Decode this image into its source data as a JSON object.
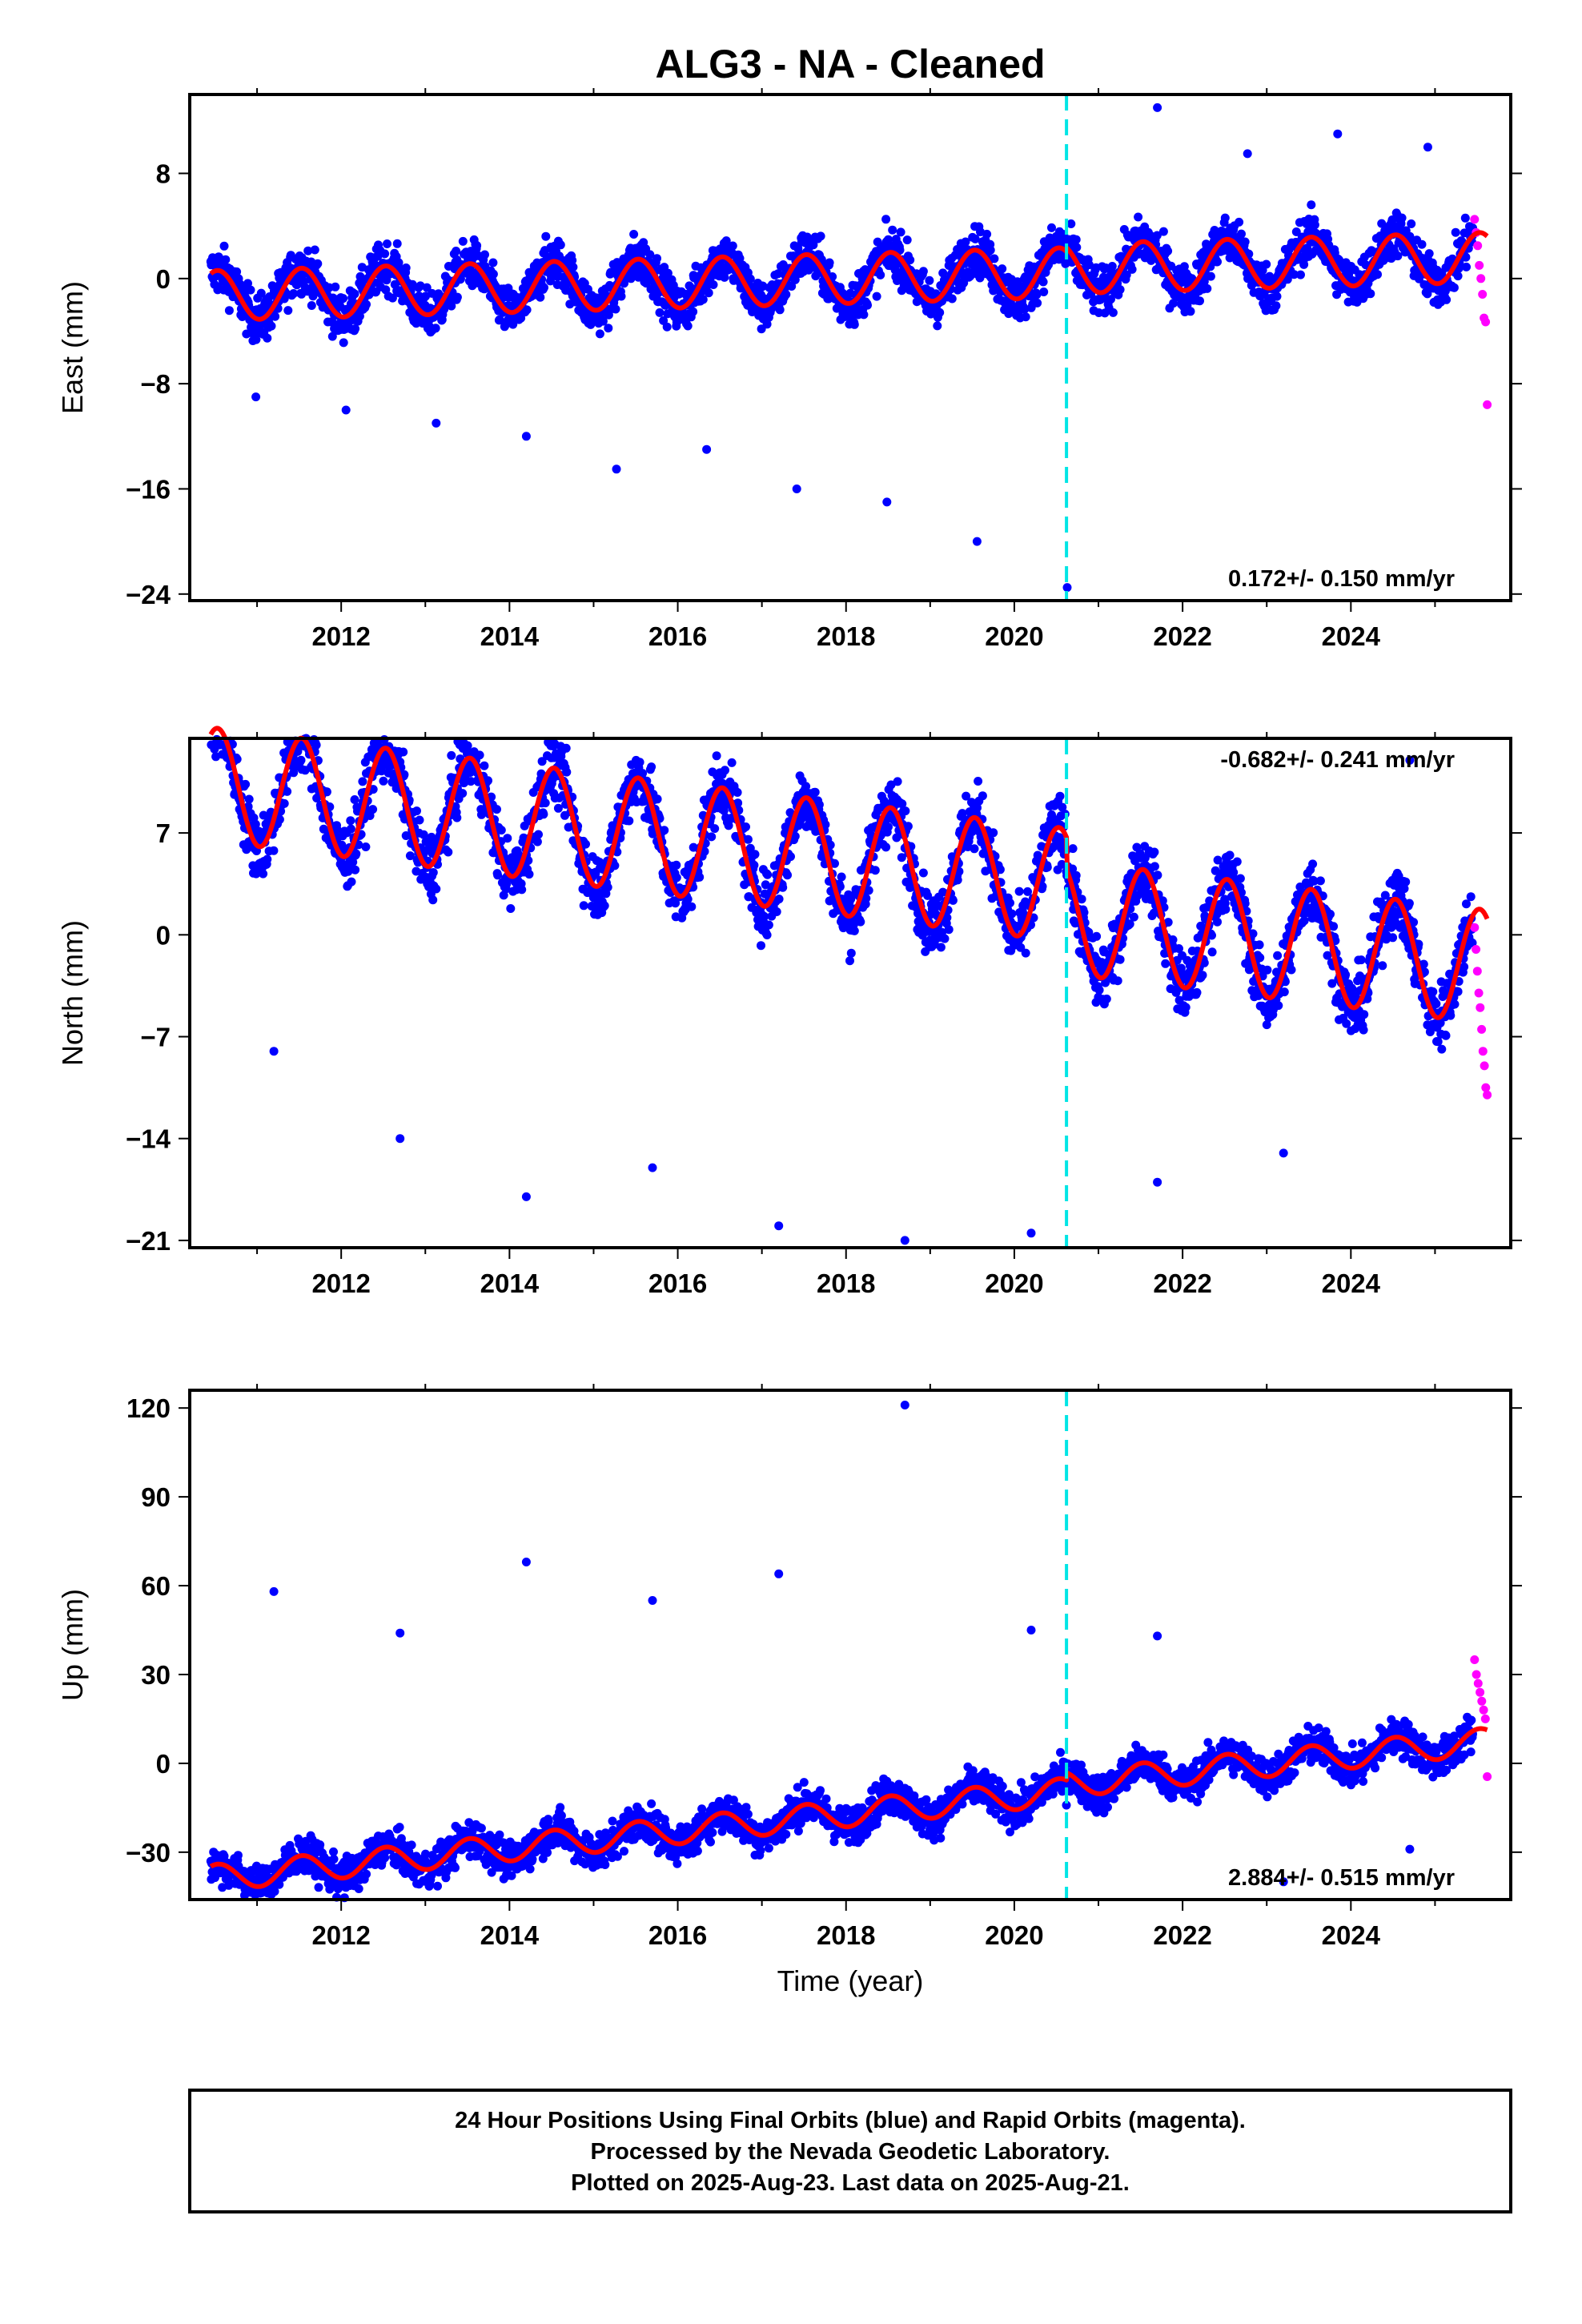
{
  "title": "ALG3  - NA - Cleaned",
  "footer": {
    "line1": "24 Hour Positions Using Final Orbits (blue) and Rapid Orbits (magenta).",
    "line2": "Processed by the Nevada Geodetic Laboratory.",
    "line3": "Plotted on 2025-Aug-23. Last data on 2025-Aug-21."
  },
  "colors": {
    "final_orbits": "#0000ff",
    "rapid_orbits": "#ff00ff",
    "model_fit": "#ff0000",
    "equipment_change": "#00e5e5",
    "frame": "#000000"
  },
  "chart_data": [
    {
      "type": "scatter",
      "ylabel": "East (mm)",
      "xlabel": "",
      "rate_text": "0.172+/- 0.150 mm/yr",
      "rate_position": "bottom-right",
      "xlim": [
        2010.2,
        2025.9
      ],
      "ylim": [
        -24.5,
        14
      ],
      "x_ticks": [
        2012,
        2014,
        2016,
        2018,
        2020,
        2022,
        2024
      ],
      "x_tick_labels": [
        "2012",
        "2014",
        "2016",
        "2018",
        "2020",
        "2022",
        "2024"
      ],
      "y_ticks": [
        8,
        0,
        -8,
        -16,
        -24
      ],
      "y_tick_labels": [
        "8",
        "0",
        "−8",
        "−16",
        "−24"
      ],
      "grid": false,
      "model": {
        "type": "seasonal",
        "offset": 0.0,
        "trend_per_year": 0.172,
        "amplitude": 1.9,
        "step_at": 2020.62,
        "step": 0.3
      },
      "equipment_change_epoch": 2020.62,
      "series": [
        {
          "label": "final",
          "x_range": [
            2010.45,
            2025.45
          ],
          "scatter": 1.3,
          "outliers_y": [
            -9,
            -10,
            -11,
            -12,
            -14.5,
            -13,
            -16,
            -17,
            -20,
            -23.5,
            13,
            9.5,
            11,
            10
          ]
        },
        {
          "label": "rapid",
          "x_range": [
            2025.47,
            2025.62
          ],
          "values": [
            4.5,
            3.5,
            2.5,
            1,
            0,
            -1.2,
            -3,
            -3.3,
            -9.6
          ]
        }
      ]
    },
    {
      "type": "scatter",
      "ylabel": "North (mm)",
      "xlabel": "",
      "rate_text": "-0.682+/- 0.241 mm/yr",
      "rate_position": "top-right",
      "xlim": [
        2010.2,
        2025.9
      ],
      "ylim": [
        -21.5,
        13.5
      ],
      "x_ticks": [
        2012,
        2014,
        2016,
        2018,
        2020,
        2022,
        2024
      ],
      "x_tick_labels": [
        "2012",
        "2014",
        "2016",
        "2018",
        "2020",
        "2022",
        "2024"
      ],
      "y_ticks": [
        7,
        0,
        -7,
        -14,
        -21
      ],
      "y_tick_labels": [
        "7",
        "0",
        "−7",
        "−14",
        "−21"
      ],
      "grid": false,
      "model": {
        "type": "seasonal",
        "offset": 5.2,
        "trend_per_year": -0.682,
        "amplitude": 3.9,
        "step_at": 2020.62,
        "step": -2.2
      },
      "equipment_change_epoch": 2020.62,
      "series": [
        {
          "label": "final",
          "x_range": [
            2010.45,
            2025.45
          ],
          "scatter": 1.6,
          "outliers_y": [
            -8,
            -14,
            -18,
            -16,
            -20,
            -21,
            -20.5,
            -17,
            -15,
            12
          ]
        },
        {
          "label": "rapid",
          "x_range": [
            2025.47,
            2025.62
          ],
          "values": [
            0.5,
            -1,
            -2.5,
            -4,
            -5,
            -6.5,
            -8,
            -9,
            -10.5,
            -11
          ]
        }
      ]
    },
    {
      "type": "scatter",
      "ylabel": "Up (mm)",
      "xlabel": "Time (year)",
      "rate_text": "2.884+/- 0.515 mm/yr",
      "rate_position": "bottom-right",
      "xlim": [
        2010.2,
        2025.9
      ],
      "ylim": [
        -46,
        126
      ],
      "x_ticks": [
        2012,
        2014,
        2016,
        2018,
        2020,
        2022,
        2024
      ],
      "x_tick_labels": [
        "2012",
        "2014",
        "2016",
        "2018",
        "2020",
        "2022",
        "2024"
      ],
      "y_ticks": [
        120,
        90,
        60,
        30,
        0,
        -30
      ],
      "y_tick_labels": [
        "120",
        "90",
        "60",
        "30",
        "0",
        "−30"
      ],
      "grid": false,
      "model": {
        "type": "seasonal",
        "offset": -17,
        "trend_per_year": 2.884,
        "amplitude": 4.5,
        "step_at": 2020.62,
        "step": 2.5
      },
      "equipment_change_epoch": 2020.62,
      "series": [
        {
          "label": "final",
          "x_range": [
            2010.45,
            2025.45
          ],
          "scatter": 4.5,
          "outliers_y": [
            58,
            44,
            68,
            55,
            64,
            121,
            45,
            43,
            -40,
            -29
          ]
        },
        {
          "label": "rapid",
          "x_range": [
            2025.47,
            2025.62
          ],
          "values": [
            35,
            30,
            27,
            24,
            21,
            18,
            15,
            -4.5
          ]
        }
      ]
    }
  ]
}
